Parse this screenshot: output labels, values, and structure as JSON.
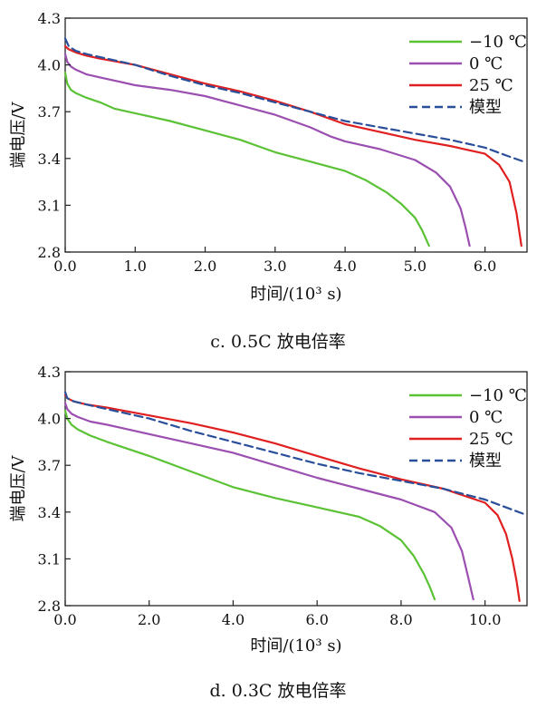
{
  "chart_data": [
    {
      "type": "line",
      "title": "c. 0.5C 放电倍率",
      "xlabel": "时间/(10³ s)",
      "ylabel": "端电压/V",
      "xlim": [
        0.0,
        6.6
      ],
      "ylim": [
        2.8,
        4.3
      ],
      "xticks": [
        "0.0",
        "1.0",
        "2.0",
        "3.0",
        "4.0",
        "5.0",
        "6.0"
      ],
      "xtick_values": [
        0,
        1,
        2,
        3,
        4,
        5,
        6
      ],
      "yticks": [
        "2.8",
        "3.1",
        "3.4",
        "3.7",
        "4.0",
        "4.3"
      ],
      "ytick_values": [
        2.8,
        3.1,
        3.4,
        3.7,
        4.0,
        4.3
      ],
      "grid": false,
      "legend_position": "top-right",
      "series": [
        {
          "name": "−10 ℃",
          "color": "#5bc236",
          "style": "solid",
          "x": [
            0,
            0.03,
            0.08,
            0.15,
            0.3,
            0.5,
            0.7,
            1.0,
            1.5,
            2.0,
            2.5,
            3.0,
            3.5,
            4.0,
            4.3,
            4.6,
            4.8,
            5.0,
            5.1,
            5.2
          ],
          "y": [
            3.95,
            3.88,
            3.84,
            3.82,
            3.79,
            3.76,
            3.72,
            3.69,
            3.64,
            3.58,
            3.52,
            3.44,
            3.38,
            3.32,
            3.26,
            3.18,
            3.11,
            3.02,
            2.94,
            2.84
          ]
        },
        {
          "name": "0 ℃",
          "color": "#9b4fb0",
          "style": "solid",
          "x": [
            0,
            0.03,
            0.08,
            0.15,
            0.3,
            0.5,
            1.0,
            1.5,
            2.0,
            2.5,
            3.0,
            3.5,
            3.8,
            4.0,
            4.5,
            5.0,
            5.3,
            5.5,
            5.65,
            5.72,
            5.78
          ],
          "y": [
            4.07,
            4.02,
            3.99,
            3.97,
            3.94,
            3.92,
            3.87,
            3.84,
            3.8,
            3.74,
            3.68,
            3.6,
            3.54,
            3.51,
            3.46,
            3.39,
            3.31,
            3.22,
            3.08,
            2.96,
            2.84
          ]
        },
        {
          "name": "25 ℃",
          "color": "#e02020",
          "style": "solid",
          "x": [
            0,
            0.05,
            0.15,
            0.3,
            0.5,
            1.0,
            1.5,
            2.0,
            2.5,
            3.0,
            3.5,
            4.0,
            4.5,
            5.0,
            5.5,
            6.0,
            6.2,
            6.35,
            6.45,
            6.52
          ],
          "y": [
            4.12,
            4.1,
            4.08,
            4.06,
            4.04,
            4.0,
            3.94,
            3.88,
            3.83,
            3.77,
            3.7,
            3.62,
            3.57,
            3.52,
            3.48,
            3.43,
            3.36,
            3.25,
            3.05,
            2.84
          ]
        },
        {
          "name": "模型",
          "color": "#2a4f9a",
          "style": "dashed",
          "x": [
            0,
            0.05,
            0.15,
            0.3,
            0.5,
            1.0,
            1.5,
            2.0,
            2.5,
            3.0,
            3.5,
            4.0,
            4.5,
            5.0,
            5.5,
            6.0,
            6.3,
            6.55
          ],
          "y": [
            4.17,
            4.12,
            4.09,
            4.07,
            4.05,
            4.0,
            3.93,
            3.87,
            3.82,
            3.76,
            3.7,
            3.64,
            3.6,
            3.56,
            3.52,
            3.47,
            3.42,
            3.38
          ]
        }
      ]
    },
    {
      "type": "line",
      "title": "d. 0.3C 放电倍率",
      "xlabel": "时间/(10³ s)",
      "ylabel": "端电压/V",
      "xlim": [
        0.0,
        11.0
      ],
      "ylim": [
        2.8,
        4.3
      ],
      "xticks": [
        "0.0",
        "2.0",
        "4.0",
        "6.0",
        "8.0",
        "10.0"
      ],
      "xtick_values": [
        0,
        2,
        4,
        6,
        8,
        10
      ],
      "yticks": [
        "2.8",
        "3.1",
        "3.4",
        "3.7",
        "4.0",
        "4.3"
      ],
      "ytick_values": [
        2.8,
        3.1,
        3.4,
        3.7,
        4.0,
        4.3
      ],
      "grid": false,
      "legend_position": "top-right",
      "series": [
        {
          "name": "−10 ℃",
          "color": "#5bc236",
          "style": "solid",
          "x": [
            0,
            0.05,
            0.15,
            0.3,
            0.6,
            1.0,
            2.0,
            3.0,
            4.0,
            5.0,
            6.0,
            7.0,
            7.5,
            8.0,
            8.3,
            8.55,
            8.7,
            8.8
          ],
          "y": [
            4.05,
            4.0,
            3.96,
            3.93,
            3.89,
            3.85,
            3.76,
            3.66,
            3.56,
            3.49,
            3.43,
            3.37,
            3.31,
            3.22,
            3.12,
            3.0,
            2.91,
            2.84
          ]
        },
        {
          "name": "0 ℃",
          "color": "#9b4fb0",
          "style": "solid",
          "x": [
            0,
            0.05,
            0.15,
            0.3,
            0.6,
            1.0,
            2.0,
            3.0,
            4.0,
            5.0,
            6.0,
            7.0,
            8.0,
            8.8,
            9.2,
            9.45,
            9.6,
            9.72
          ],
          "y": [
            4.1,
            4.06,
            4.03,
            4.01,
            3.98,
            3.96,
            3.9,
            3.84,
            3.78,
            3.7,
            3.62,
            3.55,
            3.48,
            3.4,
            3.3,
            3.15,
            2.98,
            2.84
          ]
        },
        {
          "name": "25 ℃",
          "color": "#e02020",
          "style": "solid",
          "x": [
            0,
            0.05,
            0.2,
            0.5,
            1.0,
            2.0,
            3.0,
            4.0,
            5.0,
            6.0,
            7.0,
            8.0,
            9.0,
            10.0,
            10.3,
            10.5,
            10.65,
            10.75,
            10.82
          ],
          "y": [
            4.15,
            4.13,
            4.11,
            4.09,
            4.07,
            4.02,
            3.97,
            3.91,
            3.84,
            3.76,
            3.68,
            3.61,
            3.55,
            3.46,
            3.38,
            3.26,
            3.1,
            2.96,
            2.83
          ]
        },
        {
          "name": "模型",
          "color": "#2a4f9a",
          "style": "dashed",
          "x": [
            0,
            0.05,
            0.2,
            0.5,
            1.0,
            2.0,
            3.0,
            4.0,
            5.0,
            6.0,
            7.0,
            8.0,
            9.0,
            10.0,
            10.9
          ],
          "y": [
            4.17,
            4.13,
            4.11,
            4.09,
            4.06,
            4.0,
            3.92,
            3.85,
            3.78,
            3.71,
            3.65,
            3.6,
            3.55,
            3.48,
            3.39
          ]
        }
      ]
    }
  ]
}
